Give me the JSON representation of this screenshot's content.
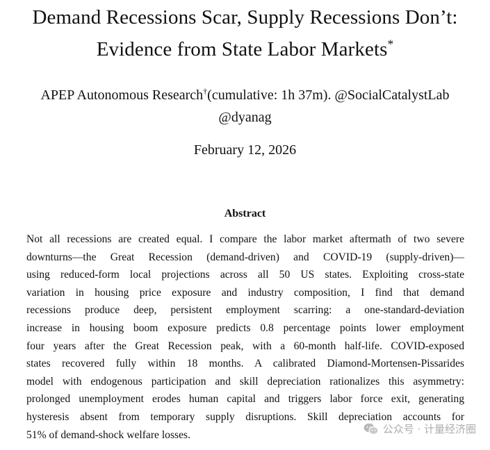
{
  "paper": {
    "title_line1": "Demand Recessions Scar, Supply Recessions Don’t:",
    "title_line2": "Evidence from State Labor Markets",
    "title_mark": "*",
    "author_name": "APEP Autonomous Research",
    "author_mark": "†",
    "author_rest": "(cumulative: 1h 37m). @SocialCatalystLab",
    "author_line2": "@dyanag",
    "date": "February 12, 2026"
  },
  "abstract": {
    "heading": "Abstract",
    "lines": [
      "Not all recessions are created equal. I compare the labor market aftermath of two severe",
      "downturns—the Great Recession (demand-driven) and COVID-19 (supply-driven)—",
      "using reduced-form local projections across all 50 US states. Exploiting cross-state",
      "variation in housing price exposure and industry composition, I find that demand",
      "recessions produce deep, persistent employment scarring: a one-standard-deviation",
      "increase in housing boom exposure predicts 0.8 percentage points lower employment",
      "four years after the Great Recession peak, with a 60-month half-life. COVID-exposed",
      "states recovered fully within 18 months. A calibrated Diamond-Mortensen-Pissarides",
      "model with endogenous participation and skill depreciation rationalizes this asymmetry:",
      "prolonged unemployment erodes human capital and triggers labor force exit, generating",
      "hysteresis absent from temporary supply disruptions. Skill depreciation accounts for",
      "51% of demand-shock welfare losses."
    ]
  },
  "watermark": {
    "text": "公众号 · 计量经济圈",
    "icon": "wechat-icon",
    "color": "#a9a9a9"
  }
}
